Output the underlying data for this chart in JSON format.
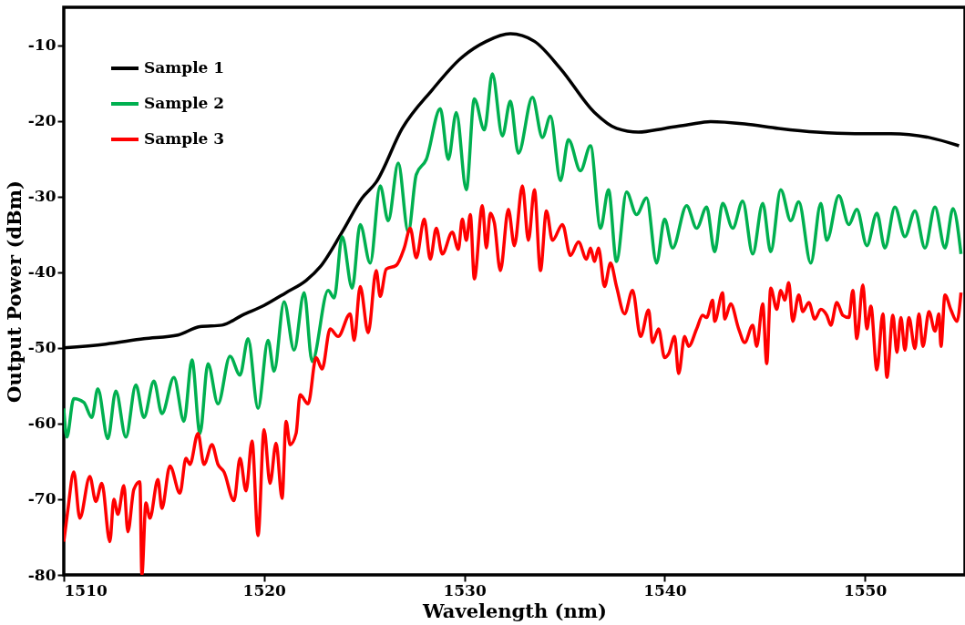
{
  "chart_data": {
    "type": "line",
    "xlabel": "Wavelength (nm)",
    "ylabel": "Output Power (dBm)",
    "xlim": [
      1510,
      1555
    ],
    "xticks": [
      1510,
      1520,
      1530,
      1540,
      1550
    ],
    "ylim": [
      -80,
      -5
    ],
    "yticks": [
      -80,
      -70,
      -60,
      -50,
      -40,
      -30,
      -20,
      -10
    ],
    "grid": false,
    "legend": "top left",
    "line_style": "solid",
    "marker": "none",
    "series": [
      {
        "name": "Sample 1",
        "color": "#000000",
        "x": [
          1510.0,
          1512.1,
          1514.0,
          1515.7,
          1516.8,
          1517.9,
          1518.9,
          1520.0,
          1521.1,
          1522.1,
          1522.8,
          1523.9,
          1524.9,
          1525.6,
          1526.9,
          1528.4,
          1529.8,
          1531.1,
          1532.3,
          1533.5,
          1534.8,
          1536.5,
          1537.6,
          1538.7,
          1540.0,
          1541.2,
          1542.3,
          1544.0,
          1545.7,
          1547.6,
          1549.5,
          1551.3,
          1553.2,
          1554.7
        ],
        "values": [
          -50.0,
          -49.5,
          -48.8,
          -48.3,
          -47.2,
          -47.0,
          -45.7,
          -44.4,
          -42.7,
          -41.1,
          -39.3,
          -34.7,
          -30.2,
          -28.1,
          -21.0,
          -15.9,
          -11.8,
          -9.5,
          -8.5,
          -9.5,
          -13.1,
          -18.9,
          -21.0,
          -21.5,
          -21.0,
          -20.5,
          -20.1,
          -20.4,
          -21.0,
          -21.5,
          -21.7,
          -21.7,
          -22.2,
          -23.3
        ]
      },
      {
        "name": "Sample 2",
        "color": "#00b050",
        "x": [
          1510.0,
          1510.15,
          1510.5,
          1511.0,
          1511.4,
          1511.7,
          1512.2,
          1512.6,
          1513.1,
          1513.6,
          1514.0,
          1514.5,
          1514.9,
          1515.5,
          1516.0,
          1516.4,
          1516.8,
          1517.2,
          1517.7,
          1518.3,
          1518.8,
          1519.2,
          1519.7,
          1520.2,
          1520.5,
          1521.0,
          1521.5,
          1522.0,
          1522.4,
          1523.2,
          1523.5,
          1523.9,
          1524.4,
          1524.8,
          1525.3,
          1525.8,
          1526.2,
          1526.7,
          1527.2,
          1527.6,
          1528.1,
          1528.8,
          1529.2,
          1529.6,
          1530.1,
          1530.5,
          1531.0,
          1531.4,
          1531.9,
          1532.3,
          1532.7,
          1533.4,
          1533.9,
          1534.3,
          1534.8,
          1535.2,
          1535.8,
          1536.3,
          1536.8,
          1537.2,
          1537.6,
          1538.1,
          1538.6,
          1539.1,
          1539.6,
          1540.0,
          1540.4,
          1541.1,
          1541.6,
          1542.1,
          1542.5,
          1542.9,
          1543.4,
          1543.9,
          1544.4,
          1544.9,
          1545.3,
          1545.8,
          1546.3,
          1546.7,
          1547.3,
          1547.8,
          1548.1,
          1548.7,
          1549.2,
          1549.6,
          1550.1,
          1550.6,
          1551.0,
          1551.5,
          1552.0,
          1552.5,
          1553.0,
          1553.5,
          1554.0,
          1554.4,
          1554.8
        ],
        "values": [
          -58.0,
          -61.8,
          -56.7,
          -57.2,
          -59.2,
          -55.4,
          -62.0,
          -55.7,
          -61.8,
          -54.9,
          -59.2,
          -54.4,
          -58.7,
          -53.9,
          -59.7,
          -51.6,
          -61.3,
          -52.1,
          -57.4,
          -51.1,
          -53.6,
          -48.8,
          -58.0,
          -49.0,
          -53.1,
          -43.9,
          -50.3,
          -42.7,
          -51.8,
          -42.4,
          -43.4,
          -35.3,
          -42.1,
          -33.7,
          -38.8,
          -28.6,
          -33.2,
          -25.6,
          -34.7,
          -27.1,
          -25.1,
          -18.4,
          -25.1,
          -18.9,
          -29.1,
          -17.1,
          -21.2,
          -13.8,
          -22.0,
          -17.4,
          -24.3,
          -16.9,
          -22.2,
          -19.4,
          -27.9,
          -22.5,
          -26.6,
          -23.3,
          -34.2,
          -29.1,
          -38.6,
          -29.4,
          -32.4,
          -30.2,
          -38.8,
          -33.0,
          -36.8,
          -31.2,
          -34.2,
          -31.4,
          -37.3,
          -30.9,
          -34.2,
          -30.6,
          -37.6,
          -30.9,
          -37.3,
          -29.1,
          -33.2,
          -30.7,
          -38.8,
          -30.9,
          -35.8,
          -29.9,
          -33.7,
          -31.7,
          -36.5,
          -32.2,
          -36.8,
          -31.4,
          -35.3,
          -31.9,
          -36.8,
          -31.4,
          -36.8,
          -31.6,
          -37.6
        ]
      },
      {
        "name": "Sample 3",
        "color": "#ff0000",
        "x": [
          1510.0,
          1510.2,
          1510.5,
          1510.8,
          1511.3,
          1511.6,
          1511.9,
          1512.3,
          1512.5,
          1512.7,
          1513.0,
          1513.2,
          1513.5,
          1513.8,
          1513.9,
          1514.1,
          1514.3,
          1514.7,
          1514.9,
          1515.3,
          1515.8,
          1516.1,
          1516.3,
          1516.7,
          1517.0,
          1517.4,
          1517.7,
          1518.0,
          1518.5,
          1518.8,
          1519.1,
          1519.4,
          1519.7,
          1520.0,
          1520.3,
          1520.6,
          1520.9,
          1521.1,
          1521.3,
          1521.6,
          1521.8,
          1522.2,
          1522.6,
          1522.9,
          1523.3,
          1523.7,
          1524.3,
          1524.5,
          1524.8,
          1525.2,
          1525.6,
          1525.8,
          1526.1,
          1526.6,
          1527.0,
          1527.3,
          1527.6,
          1528.0,
          1528.3,
          1528.6,
          1528.9,
          1529.4,
          1529.7,
          1529.9,
          1530.1,
          1530.3,
          1530.5,
          1530.9,
          1531.1,
          1531.3,
          1531.5,
          1531.8,
          1532.2,
          1532.5,
          1532.9,
          1533.2,
          1533.5,
          1533.8,
          1534.1,
          1534.4,
          1534.9,
          1535.3,
          1535.7,
          1536.1,
          1536.3,
          1536.5,
          1536.7,
          1537.0,
          1537.3,
          1537.6,
          1538.0,
          1538.4,
          1538.8,
          1539.2,
          1539.4,
          1539.7,
          1540.0,
          1540.2,
          1540.5,
          1540.7,
          1541.0,
          1541.2,
          1541.6,
          1541.9,
          1542.1,
          1542.4,
          1542.5,
          1542.9,
          1543.0,
          1543.3,
          1543.7,
          1544.0,
          1544.4,
          1544.6,
          1544.9,
          1545.1,
          1545.3,
          1545.6,
          1545.8,
          1546.0,
          1546.2,
          1546.4,
          1546.7,
          1546.9,
          1547.2,
          1547.5,
          1547.8,
          1548.1,
          1548.3,
          1548.6,
          1548.9,
          1549.2,
          1549.4,
          1549.6,
          1549.9,
          1550.1,
          1550.3,
          1550.6,
          1550.9,
          1551.1,
          1551.4,
          1551.6,
          1551.8,
          1552.0,
          1552.2,
          1552.5,
          1552.7,
          1552.9,
          1553.2,
          1553.5,
          1553.7,
          1553.8,
          1554.0,
          1554.3,
          1554.6,
          1554.8
        ],
        "values": [
          -75.6,
          -71.5,
          -66.4,
          -72.5,
          -67.0,
          -70.3,
          -67.9,
          -75.6,
          -70.0,
          -72.0,
          -68.2,
          -74.3,
          -68.7,
          -67.7,
          -80,
          -70.5,
          -72.5,
          -67.4,
          -71.2,
          -65.6,
          -69.2,
          -64.6,
          -65.4,
          -61.3,
          -65.4,
          -62.8,
          -65.4,
          -66.4,
          -70.2,
          -64.6,
          -68.9,
          -62.3,
          -74.8,
          -60.8,
          -67.9,
          -62.6,
          -69.9,
          -59.7,
          -62.8,
          -61.3,
          -56.2,
          -57.4,
          -51.3,
          -52.8,
          -47.5,
          -48.5,
          -45.5,
          -49.0,
          -41.9,
          -48.0,
          -39.8,
          -43.2,
          -39.6,
          -39.1,
          -36.8,
          -34.2,
          -38.1,
          -33.0,
          -38.3,
          -34.2,
          -37.6,
          -34.7,
          -37.0,
          -33.0,
          -35.8,
          -32.4,
          -40.9,
          -31.2,
          -36.8,
          -32.2,
          -33.5,
          -39.8,
          -31.7,
          -36.5,
          -28.6,
          -35.8,
          -29.1,
          -39.8,
          -31.9,
          -35.8,
          -33.7,
          -37.8,
          -36.0,
          -38.3,
          -36.8,
          -38.6,
          -36.8,
          -41.9,
          -38.8,
          -41.9,
          -45.5,
          -42.4,
          -48.5,
          -45.0,
          -49.3,
          -47.5,
          -51.3,
          -50.8,
          -48.5,
          -53.4,
          -48.5,
          -49.8,
          -47.5,
          -45.7,
          -46.0,
          -43.7,
          -46.5,
          -42.7,
          -46.2,
          -44.2,
          -47.5,
          -49.3,
          -47.0,
          -49.8,
          -44.2,
          -52.1,
          -42.1,
          -44.9,
          -42.4,
          -43.7,
          -41.4,
          -46.5,
          -43.0,
          -45.2,
          -44.0,
          -46.2,
          -44.9,
          -45.7,
          -47.0,
          -44.0,
          -45.7,
          -46.0,
          -42.4,
          -48.8,
          -41.7,
          -47.5,
          -44.5,
          -52.9,
          -45.5,
          -53.9,
          -45.7,
          -50.6,
          -46.0,
          -50.3,
          -46.0,
          -50.1,
          -45.5,
          -49.8,
          -45.2,
          -47.8,
          -45.5,
          -49.8,
          -43.0,
          -45.0,
          -46.5,
          -42.7
        ]
      }
    ]
  }
}
